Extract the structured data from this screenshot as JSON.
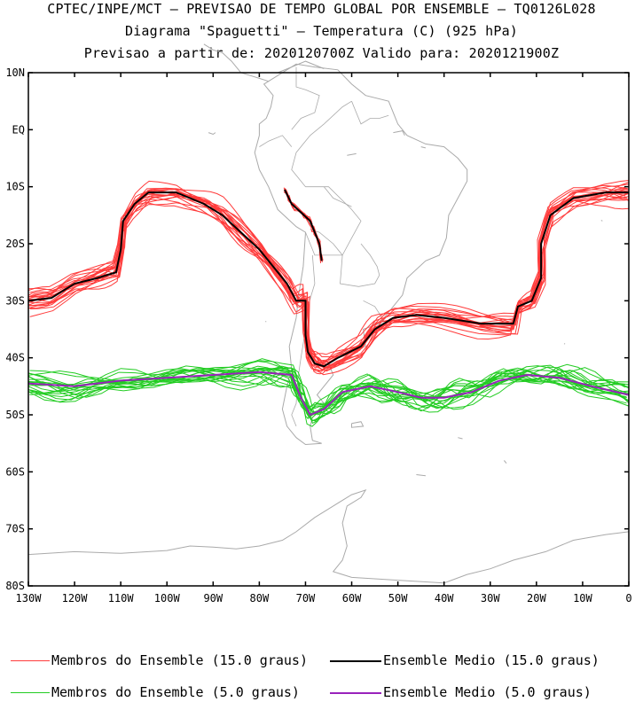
{
  "title": {
    "line1": "CPTEC/INPE/MCT – PREVISAO DE TEMPO GLOBAL POR ENSEMBLE – TQ0126L028",
    "line2": "Diagrama \"Spaguetti\" – Temperatura (C) (925 hPa)",
    "line3": "Previsao a partir de: 2020120700Z  Valido para: 2020121900Z"
  },
  "chart_data": {
    "type": "line",
    "title": "Diagrama \"Spaguetti\" – Temperatura (C) (925 hPa)",
    "xlim": [
      -130,
      0
    ],
    "ylim": [
      -80,
      10
    ],
    "x_ticks": [
      {
        "value": -130,
        "label": "130W"
      },
      {
        "value": -120,
        "label": "120W"
      },
      {
        "value": -110,
        "label": "110W"
      },
      {
        "value": -100,
        "label": "100W"
      },
      {
        "value": -90,
        "label": "90W"
      },
      {
        "value": -80,
        "label": "80W"
      },
      {
        "value": -70,
        "label": "70W"
      },
      {
        "value": -60,
        "label": "60W"
      },
      {
        "value": -50,
        "label": "50W"
      },
      {
        "value": -40,
        "label": "40W"
      },
      {
        "value": -30,
        "label": "30W"
      },
      {
        "value": -20,
        "label": "20W"
      },
      {
        "value": -10,
        "label": "10W"
      },
      {
        "value": 0,
        "label": "0"
      }
    ],
    "y_ticks": [
      {
        "value": 10,
        "label": "10N"
      },
      {
        "value": 0,
        "label": "EQ"
      },
      {
        "value": -10,
        "label": "10S"
      },
      {
        "value": -20,
        "label": "20S"
      },
      {
        "value": -30,
        "label": "30S"
      },
      {
        "value": -40,
        "label": "40S"
      },
      {
        "value": -50,
        "label": "50S"
      },
      {
        "value": -60,
        "label": "60S"
      },
      {
        "value": -70,
        "label": "70S"
      },
      {
        "value": -80,
        "label": "80S"
      }
    ],
    "colors": {
      "members_15": "#ff3b3b",
      "mean_15": "#000000",
      "members_5": "#22cc22",
      "mean_5": "#9922bb",
      "map": "#aaaaaa"
    },
    "series": [
      {
        "name": "Ensemble Medio (15.0 graus)",
        "role": "mean_15",
        "segments": [
          [
            [
              -130,
              -30
            ],
            [
              -125,
              -29.5
            ],
            [
              -120,
              -27
            ],
            [
              -115,
              -26
            ],
            [
              -111,
              -25
            ],
            [
              -110,
              -21
            ],
            [
              -109.5,
              -16
            ],
            [
              -107,
              -13
            ],
            [
              -104,
              -11
            ],
            [
              -98,
              -11
            ],
            [
              -92,
              -13
            ],
            [
              -88,
              -15
            ],
            [
              -84,
              -18
            ],
            [
              -80,
              -21
            ],
            [
              -77,
              -24
            ],
            [
              -74,
              -27
            ],
            [
              -72,
              -30
            ],
            [
              -70,
              -30
            ],
            [
              -70,
              -36
            ],
            [
              -69.5,
              -39
            ],
            [
              -68,
              -41
            ],
            [
              -66,
              -41.5
            ],
            [
              -63,
              -40
            ],
            [
              -58,
              -38
            ],
            [
              -55,
              -35
            ],
            [
              -51,
              -33
            ],
            [
              -46,
              -32.5
            ],
            [
              -40,
              -33
            ],
            [
              -32,
              -34
            ],
            [
              -25,
              -34
            ],
            [
              -24,
              -31
            ],
            [
              -21,
              -30
            ],
            [
              -19,
              -26
            ],
            [
              -19,
              -20
            ],
            [
              -17,
              -15
            ],
            [
              -12,
              -12
            ],
            [
              -5,
              -11
            ],
            [
              0,
              -11
            ]
          ],
          [
            [
              -74.5,
              -10.5
            ],
            [
              -73,
              -13
            ],
            [
              -71,
              -14.5
            ],
            [
              -69,
              -16
            ],
            [
              -68,
              -18
            ],
            [
              -67,
              -20
            ],
            [
              -66.5,
              -23
            ]
          ]
        ]
      },
      {
        "name": "Ensemble Medio (5.0 graus)",
        "role": "mean_5",
        "segments": [
          [
            [
              -130,
              -44.5
            ],
            [
              -120,
              -45
            ],
            [
              -110,
              -44
            ],
            [
              -100,
              -43.5
            ],
            [
              -90,
              -43
            ],
            [
              -80,
              -42.5
            ],
            [
              -73,
              -43
            ],
            [
              -71,
              -47
            ],
            [
              -69,
              -50
            ],
            [
              -66,
              -49
            ],
            [
              -62,
              -46
            ],
            [
              -56,
              -45
            ],
            [
              -50,
              -46
            ],
            [
              -45,
              -47
            ],
            [
              -40,
              -47
            ],
            [
              -34,
              -46
            ],
            [
              -28,
              -44
            ],
            [
              -22,
              -43
            ],
            [
              -15,
              -43.5
            ],
            [
              -8,
              -45
            ],
            [
              0,
              -46.5
            ]
          ]
        ]
      }
    ],
    "legend": [
      {
        "label": "Membros do Ensemble (15.0 graus)",
        "role": "members_15"
      },
      {
        "label": "Ensemble Medio (15.0 graus)",
        "role": "mean_15"
      },
      {
        "label": "Membros do Ensemble (5.0 graus)",
        "role": "members_5"
      },
      {
        "label": "Ensemble Medio (5.0 graus)",
        "role": "mean_5"
      }
    ],
    "legend_position": "bottom",
    "grid": false
  }
}
